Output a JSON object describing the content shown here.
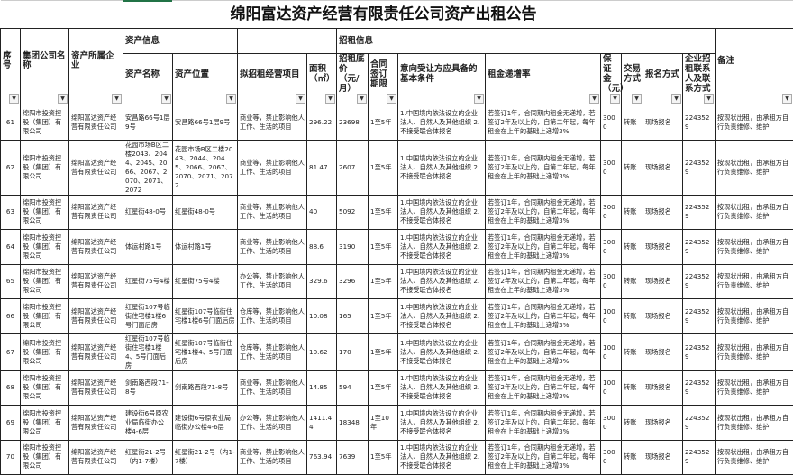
{
  "title": "绵阳富达资产经营有限责任公司资产出租公告",
  "groups": {
    "asset_info": "资产信息",
    "lease_info": "招租信息"
  },
  "headers": {
    "seq": "序号",
    "group_company": "集团公司名称",
    "owner": "资产所属企业",
    "asset_name": "资产名称",
    "asset_location": "资产位置",
    "business": "拟招租经营项目",
    "area": "面积（㎡）",
    "base_price": "招租底价（元/月）",
    "term": "合同签订期限",
    "conditions": "意向受让方应具备的基本条件",
    "increase": "租金递增率",
    "deposit": "保证金（元）",
    "trade": "交易方式",
    "signup": "报名方式",
    "contact": "企业招租联系人及联系方式",
    "remarks": "备注"
  },
  "filter_icon": "dropdown-arrow",
  "rows": [
    {
      "seq": "61",
      "group_company": "绵阳市投资控股（集团）有限公司",
      "owner": "绵阳富达资产经营有限责任公司",
      "asset_name": "安昌路66号1层9号",
      "asset_location": "安昌路66号1层9号",
      "business": "商业等，禁止影响他人工作、生活的项目",
      "area": "296.22",
      "base_price": "23698",
      "term": "1至5年",
      "conditions": "1.中国境内依法设立的企业法人、自然人及其他组织 2.不接受联合体报名",
      "increase": "若签订1年，合同期内租金无递增，若签订2年及以上的，自第二年起，每年租金在上年的基础上递增3%",
      "deposit": "3000",
      "trade": "转账",
      "signup": "现场报名",
      "contact": "2243529",
      "remarks": "按现状出租，由承租方自行负责维修、维护"
    },
    {
      "seq": "62",
      "group_company": "绵阳市投资控股（集团）有限公司",
      "owner": "绵阳富达资产经营有限责任公司",
      "asset_name": "花园市场B区二楼2043、2044、2045、2066、2067、2070、2071、2072",
      "asset_location": "花园市场B区二楼2043、2044、2045、2066、2067、2070、2071、2072",
      "business": "商业等，禁止影响他人工作、生活的项目",
      "area": "81.47",
      "base_price": "2607",
      "term": "1至5年",
      "conditions": "1.中国境内依法设立的企业法人、自然人及其他组织 2.不接受联合体报名",
      "increase": "若签订1年，合同期内租金无递增，若签订2年及以上的，自第二年起，每年租金在上年的基础上递增3%",
      "deposit": "3000",
      "trade": "转账",
      "signup": "现场报名",
      "contact": "2243529",
      "remarks": "按现状出租，由承租方自行负责维修、维护"
    },
    {
      "seq": "63",
      "group_company": "绵阳市投资控股（集团）有限公司",
      "owner": "绵阳富达资产经营有限责任公司",
      "asset_name": "红星街48-0号",
      "asset_location": "红星街48-0号",
      "business": "商业等，禁止影响他人工作、生活的项目",
      "area": "40",
      "base_price": "5092",
      "term": "1至5年",
      "conditions": "1.中国境内依法设立的企业法人、自然人及其他组织 2.不接受联合体报名",
      "increase": "若签订1年，合同期内租金无递增，若签订2年及以上的，自第二年起，每年租金在上年的基础上递增3%",
      "deposit": "3000",
      "trade": "转账",
      "signup": "现场报名",
      "contact": "2243529",
      "remarks": "按现状出租，由承租方自行负责维修、维护"
    },
    {
      "seq": "64",
      "group_company": "绵阳市投资控股（集团）有限公司",
      "owner": "绵阳富达资产经营有限责任公司",
      "asset_name": "体运村路1号",
      "asset_location": "体运村路1号",
      "business": "商业等，禁止影响他人工作、生活的项目",
      "area": "88.6",
      "base_price": "3190",
      "term": "1至5年",
      "conditions": "1.中国境内依法设立的企业法人、自然人及其他组织 2.不接受联合体报名",
      "increase": "若签订1年，合同期内租金无递增，若签订2年及以上的，自第二年起，每年租金在上年的基础上递增3%",
      "deposit": "3000",
      "trade": "转账",
      "signup": "现场报名",
      "contact": "2243529",
      "remarks": "按现状出租，由承租方自行负责维修、维护"
    },
    {
      "seq": "65",
      "group_company": "绵阳市投资控股（集团）有限公司",
      "owner": "绵阳富达资产经营有限责任公司",
      "asset_name": "红星街75号4楼",
      "asset_location": "红星街75号4楼",
      "business": "办公等，禁止影响他人工作、生活的项目",
      "area": "329.6",
      "base_price": "3296",
      "term": "1至5年",
      "conditions": "1.中国境内依法设立的企业法人、自然人及其他组织 2.不接受联合体报名",
      "increase": "若签订1年，合同期内租金无递增，若签订2年及以上的，自第二年起，每年租金在上年的基础上递增3%",
      "deposit": "3000",
      "trade": "转账",
      "signup": "现场报名",
      "contact": "2243529",
      "remarks": "按现状出租，由承租方自行负责维修、维护"
    },
    {
      "seq": "66",
      "group_company": "绵阳市投资控股（集团）有限公司",
      "owner": "绵阳富达资产经营有限责任公司",
      "asset_name": "红星街107号临街住宅楼1楼6号门面后房",
      "asset_location": "红星街107号临街住宅楼1楼6号门面后房",
      "business": "仓库等，禁止影响他人工作、生活的项目",
      "area": "10.08",
      "base_price": "165",
      "term": "1至5年",
      "conditions": "1.中国境内依法设立的企业法人、自然人及其他组织 2.不接受联合体报名",
      "increase": "若签订1年，合同期内租金无递增，若签订2年及以上的，自第二年起，每年租金在上年的基础上递增3%",
      "deposit": "1000",
      "trade": "转账",
      "signup": "现场报名",
      "contact": "2243529",
      "remarks": "按现状出租，由承租方自行负责维修、维护"
    },
    {
      "seq": "67",
      "group_company": "绵阳市投资控股（集团）有限公司",
      "owner": "绵阳富达资产经营有限责任公司",
      "asset_name": "红星街107号临街住宅楼1楼4、5号门面后房",
      "asset_location": "红星街107号临街住宅楼1楼4、5号门面后房",
      "business": "仓库等，禁止影响他人工作、生活的项目",
      "area": "10.62",
      "base_price": "170",
      "term": "1至5年",
      "conditions": "1.中国境内依法设立的企业法人、自然人及其他组织 2.不接受联合体报名",
      "increase": "若签订1年，合同期内租金无递增，若签订2年及以上的，自第二年起，每年租金在上年的基础上递增3%",
      "deposit": "1000",
      "trade": "转账",
      "signup": "现场报名",
      "contact": "2243529",
      "remarks": "按现状出租，由承租方自行负责维修、维护"
    },
    {
      "seq": "68",
      "group_company": "绵阳市投资控股（集团）有限公司",
      "owner": "绵阳富达资产经营有限责任公司",
      "asset_name": "剑南路西段71-8号",
      "asset_location": "剑南路西段71-8号",
      "business": "商业等，禁止影响他人工作、生活的项目",
      "area": "14.85",
      "base_price": "594",
      "term": "1至5年",
      "conditions": "1.中国境内依法设立的企业法人、自然人及其他组织 2.不接受联合体报名",
      "increase": "若签订1年，合同期内租金无递增，若签订2年及以上的，自第二年起，每年租金在上年的基础上递增3%",
      "deposit": "1000",
      "trade": "转账",
      "signup": "现场报名",
      "contact": "2243529",
      "remarks": "按现状出租，由承租方自行负责维修、维护"
    },
    {
      "seq": "69",
      "group_company": "绵阳市投资控股（集团）有限公司",
      "owner": "绵阳富达资产经营有限责任公司",
      "asset_name": "建设街6号原农业局临街办公楼4-6层",
      "asset_location": "建设街6号原农业局临街办公楼4-6层",
      "business": "办公等，禁止影响他人工作、生活的项目",
      "area": "1411.44",
      "base_price": "18348",
      "term": "1至10年",
      "conditions": "1.中国境内依法设立的企业法人、自然人及其他组织 2.不接受联合体报名",
      "increase": "若签订1年，合同期内租金无递增，若签订2年及以上的，自第二年起，每年租金在上年的基础上递增3%",
      "deposit": "3000",
      "trade": "转账",
      "signup": "现场报名",
      "contact": "2243529",
      "remarks": "按现状出租，由承租方自行负责维修、维护"
    },
    {
      "seq": "70",
      "group_company": "绵阳市投资控股（集团）有限公司",
      "owner": "绵阳富达资产经营有限责任公司",
      "asset_name": "红星街21-2号（内1-7楼）",
      "asset_location": "红星街21-2号（内1-7楼）",
      "business": "商业等，禁止影响他人工作、生活的项目",
      "area": "763.94",
      "base_price": "7639",
      "term": "1至5年",
      "conditions": "1.中国境内依法设立的企业法人、自然人及其他组织 2.不接受联合体报名",
      "increase": "若签订1年，合同期内租金无递增，若签订2年及以上的，自第二年起，每年租金在上年的基础上递增3%",
      "deposit": "3000",
      "trade": "转账",
      "signup": "现场报名",
      "contact": "2243529",
      "remarks": "按现状出租，由承租方自行负责维修、维护"
    }
  ]
}
